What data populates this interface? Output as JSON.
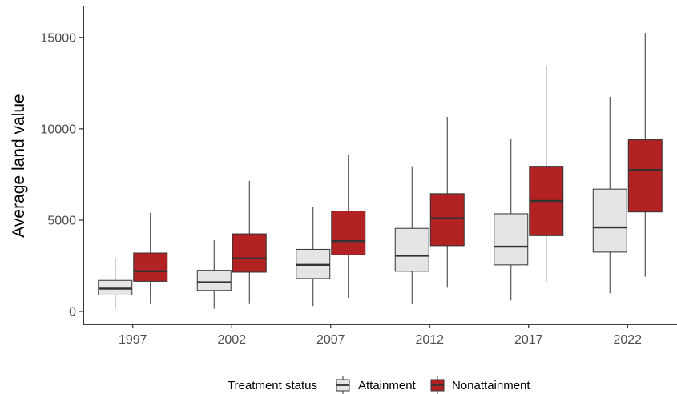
{
  "chart_data": {
    "type": "boxplot",
    "title": "",
    "xlabel": "",
    "ylabel": "Average land value",
    "ylim": [
      -700,
      16700
    ],
    "yticks": [
      0,
      5000,
      10000,
      15000
    ],
    "tick_labels_y": [
      "0",
      "5000",
      "10000",
      "15000"
    ],
    "categories": [
      "1997",
      "2002",
      "2007",
      "2012",
      "2017",
      "2022"
    ],
    "grid": false,
    "legend": {
      "title": "Treatment status",
      "position": "bottom"
    },
    "series": [
      {
        "name": "Attainment",
        "color": "#e5e5e5",
        "boxes": [
          {
            "whisker_low": 150,
            "q1": 900,
            "median": 1250,
            "q3": 1700,
            "whisker_high": 2950
          },
          {
            "whisker_low": 150,
            "q1": 1150,
            "median": 1600,
            "q3": 2250,
            "whisker_high": 3900
          },
          {
            "whisker_low": 300,
            "q1": 1800,
            "median": 2550,
            "q3": 3400,
            "whisker_high": 5700
          },
          {
            "whisker_low": 400,
            "q1": 2200,
            "median": 3050,
            "q3": 4550,
            "whisker_high": 7950
          },
          {
            "whisker_low": 600,
            "q1": 2550,
            "median": 3550,
            "q3": 5350,
            "whisker_high": 9450
          },
          {
            "whisker_low": 1000,
            "q1": 3250,
            "median": 4600,
            "q3": 6700,
            "whisker_high": 11750
          }
        ]
      },
      {
        "name": "Nonattainment",
        "color": "#b22222",
        "boxes": [
          {
            "whisker_low": 450,
            "q1": 1650,
            "median": 2200,
            "q3": 3200,
            "whisker_high": 5400
          },
          {
            "whisker_low": 450,
            "q1": 2150,
            "median": 2900,
            "q3": 4250,
            "whisker_high": 7150
          },
          {
            "whisker_low": 750,
            "q1": 3100,
            "median": 3850,
            "q3": 5500,
            "whisker_high": 8550
          },
          {
            "whisker_low": 1300,
            "q1": 3600,
            "median": 5100,
            "q3": 6450,
            "whisker_high": 10650
          },
          {
            "whisker_low": 1650,
            "q1": 4150,
            "median": 6050,
            "q3": 7950,
            "whisker_high": 13450
          },
          {
            "whisker_low": 1900,
            "q1": 5450,
            "median": 7750,
            "q3": 9400,
            "whisker_high": 15250
          }
        ]
      }
    ]
  }
}
